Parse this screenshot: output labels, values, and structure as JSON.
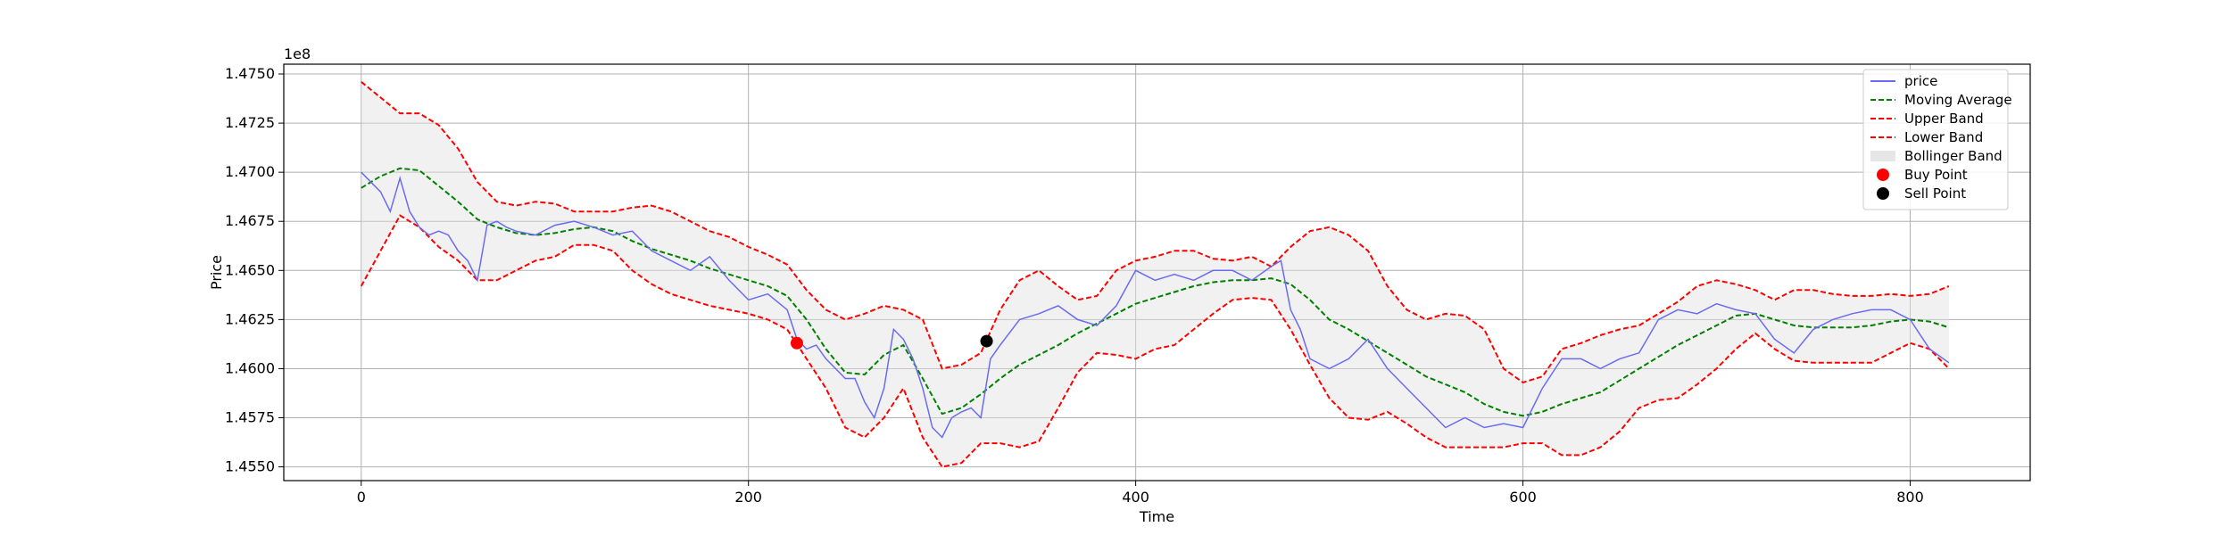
{
  "chart_data": {
    "type": "line",
    "xlabel": "Time",
    "ylabel": "Price",
    "y_offset_label": "1e8",
    "xlim": [
      -40,
      862
    ],
    "ylim": [
      145430000.0,
      147550000.0
    ],
    "x_ticks": [
      0,
      200,
      400,
      600,
      800
    ],
    "x_tick_labels": [
      "0",
      "200",
      "400",
      "600",
      "800"
    ],
    "y_ticks": [
      145500000.0,
      145750000.0,
      146000000.0,
      146250000.0,
      146500000.0,
      146750000.0,
      147000000.0,
      147250000.0,
      147500000.0
    ],
    "y_tick_labels": [
      "1.4550",
      "1.4575",
      "1.4600",
      "1.4625",
      "1.4650",
      "1.4675",
      "1.4700",
      "1.4725",
      "1.4750"
    ],
    "grid": true,
    "legend_position": "top-right",
    "colors": {
      "price": "#6b6bf0",
      "moving_average": "#008000",
      "bands": "#ff0000",
      "band_fill": "#e0e0e0",
      "buy": "#ff0000",
      "sell": "#000000"
    },
    "series": [
      {
        "name": "price",
        "x": [
          0,
          5,
          10,
          15,
          20,
          25,
          30,
          35,
          40,
          45,
          50,
          55,
          60,
          65,
          70,
          75,
          80,
          90,
          100,
          110,
          120,
          130,
          140,
          150,
          160,
          170,
          180,
          190,
          200,
          210,
          220,
          225,
          230,
          235,
          240,
          245,
          250,
          255,
          260,
          265,
          270,
          275,
          280,
          285,
          290,
          295,
          300,
          305,
          310,
          315,
          320,
          325,
          330,
          340,
          350,
          360,
          370,
          380,
          390,
          400,
          410,
          420,
          430,
          440,
          450,
          460,
          470,
          475,
          480,
          485,
          490,
          500,
          510,
          520,
          530,
          540,
          550,
          560,
          570,
          580,
          590,
          600,
          610,
          620,
          630,
          640,
          650,
          660,
          670,
          680,
          690,
          700,
          710,
          720,
          730,
          740,
          750,
          760,
          770,
          780,
          790,
          800,
          810,
          820
        ],
        "y": [
          147000000.0,
          146950000.0,
          146900000.0,
          146800000.0,
          146970000.0,
          146800000.0,
          146720000.0,
          146680000.0,
          146700000.0,
          146680000.0,
          146600000.0,
          146550000.0,
          146450000.0,
          146730000.0,
          146750000.0,
          146720000.0,
          146700000.0,
          146680000.0,
          146730000.0,
          146750000.0,
          146720000.0,
          146680000.0,
          146700000.0,
          146600000.0,
          146550000.0,
          146500000.0,
          146570000.0,
          146450000.0,
          146350000.0,
          146380000.0,
          146300000.0,
          146150000.0,
          146100000.0,
          146120000.0,
          146050000.0,
          146000000.0,
          145950000.0,
          145950000.0,
          145830000.0,
          145750000.0,
          145900000.0,
          146200000.0,
          146150000.0,
          146050000.0,
          145900000.0,
          145700000.0,
          145650000.0,
          145750000.0,
          145780000.0,
          145800000.0,
          145750000.0,
          146050000.0,
          146120000.0,
          146250000.0,
          146280000.0,
          146320000.0,
          146250000.0,
          146220000.0,
          146320000.0,
          146500000.0,
          146450000.0,
          146480000.0,
          146450000.0,
          146500000.0,
          146500000.0,
          146450000.0,
          146520000.0,
          146550000.0,
          146300000.0,
          146200000.0,
          146050000.0,
          146000000.0,
          146050000.0,
          146150000.0,
          146000000.0,
          145900000.0,
          145800000.0,
          145700000.0,
          145750000.0,
          145700000.0,
          145720000.0,
          145700000.0,
          145900000.0,
          146050000.0,
          146050000.0,
          146000000.0,
          146050000.0,
          146080000.0,
          146250000.0,
          146300000.0,
          146280000.0,
          146330000.0,
          146300000.0,
          146280000.0,
          146150000.0,
          146080000.0,
          146200000.0,
          146250000.0,
          146280000.0,
          146300000.0,
          146300000.0,
          146250000.0,
          146100000.0,
          146030000.0
        ]
      },
      {
        "name": "Moving Average",
        "x": [
          0,
          10,
          20,
          30,
          40,
          50,
          60,
          70,
          80,
          90,
          100,
          110,
          120,
          130,
          140,
          150,
          160,
          170,
          180,
          190,
          200,
          210,
          220,
          230,
          240,
          250,
          260,
          270,
          280,
          290,
          300,
          310,
          320,
          330,
          340,
          350,
          360,
          370,
          380,
          390,
          400,
          410,
          420,
          430,
          440,
          450,
          460,
          470,
          480,
          490,
          500,
          510,
          520,
          530,
          540,
          550,
          560,
          570,
          580,
          590,
          600,
          610,
          620,
          630,
          640,
          650,
          660,
          670,
          680,
          690,
          700,
          710,
          720,
          730,
          740,
          750,
          760,
          770,
          780,
          790,
          800,
          810,
          820
        ],
        "y": [
          146920000.0,
          146980000.0,
          147020000.0,
          147010000.0,
          146930000.0,
          146850000.0,
          146760000.0,
          146720000.0,
          146690000.0,
          146680000.0,
          146690000.0,
          146710000.0,
          146720000.0,
          146700000.0,
          146650000.0,
          146610000.0,
          146580000.0,
          146550000.0,
          146510000.0,
          146480000.0,
          146450000.0,
          146420000.0,
          146370000.0,
          146250000.0,
          146100000.0,
          145980000.0,
          145970000.0,
          146070000.0,
          146120000.0,
          145950000.0,
          145770000.0,
          145800000.0,
          145870000.0,
          145950000.0,
          146020000.0,
          146070000.0,
          146120000.0,
          146180000.0,
          146230000.0,
          146280000.0,
          146330000.0,
          146360000.0,
          146390000.0,
          146420000.0,
          146440000.0,
          146450000.0,
          146450000.0,
          146460000.0,
          146430000.0,
          146350000.0,
          146250000.0,
          146200000.0,
          146140000.0,
          146080000.0,
          146020000.0,
          145960000.0,
          145920000.0,
          145880000.0,
          145820000.0,
          145780000.0,
          145760000.0,
          145780000.0,
          145820000.0,
          145850000.0,
          145880000.0,
          145940000.0,
          146000000.0,
          146060000.0,
          146120000.0,
          146170000.0,
          146220000.0,
          146270000.0,
          146280000.0,
          146250000.0,
          146220000.0,
          146210000.0,
          146210000.0,
          146210000.0,
          146220000.0,
          146240000.0,
          146250000.0,
          146240000.0,
          146210000.0
        ]
      },
      {
        "name": "Upper Band",
        "x": [
          0,
          10,
          20,
          30,
          40,
          50,
          60,
          70,
          80,
          90,
          100,
          110,
          120,
          130,
          140,
          150,
          160,
          170,
          180,
          190,
          200,
          210,
          220,
          230,
          240,
          250,
          260,
          270,
          280,
          290,
          300,
          310,
          320,
          330,
          340,
          350,
          360,
          370,
          380,
          390,
          400,
          410,
          420,
          430,
          440,
          450,
          460,
          470,
          480,
          490,
          500,
          510,
          520,
          530,
          540,
          550,
          560,
          570,
          580,
          590,
          600,
          610,
          620,
          630,
          640,
          650,
          660,
          670,
          680,
          690,
          700,
          710,
          720,
          730,
          740,
          750,
          760,
          770,
          780,
          790,
          800,
          810,
          820
        ],
        "y": [
          147460000.0,
          147380000.0,
          147300000.0,
          147300000.0,
          147240000.0,
          147120000.0,
          146950000.0,
          146850000.0,
          146830000.0,
          146850000.0,
          146840000.0,
          146800000.0,
          146800000.0,
          146800000.0,
          146820000.0,
          146830000.0,
          146800000.0,
          146750000.0,
          146700000.0,
          146670000.0,
          146620000.0,
          146580000.0,
          146530000.0,
          146400000.0,
          146300000.0,
          146250000.0,
          146280000.0,
          146320000.0,
          146300000.0,
          146250000.0,
          146000000.0,
          146020000.0,
          146080000.0,
          146300000.0,
          146450000.0,
          146500000.0,
          146420000.0,
          146350000.0,
          146370000.0,
          146500000.0,
          146550000.0,
          146570000.0,
          146600000.0,
          146600000.0,
          146560000.0,
          146550000.0,
          146570000.0,
          146520000.0,
          146620000.0,
          146700000.0,
          146720000.0,
          146680000.0,
          146600000.0,
          146420000.0,
          146300000.0,
          146250000.0,
          146280000.0,
          146270000.0,
          146200000.0,
          146000000.0,
          145930000.0,
          145960000.0,
          146100000.0,
          146130000.0,
          146170000.0,
          146200000.0,
          146220000.0,
          146280000.0,
          146340000.0,
          146420000.0,
          146450000.0,
          146430000.0,
          146400000.0,
          146350000.0,
          146400000.0,
          146400000.0,
          146380000.0,
          146370000.0,
          146370000.0,
          146380000.0,
          146370000.0,
          146380000.0,
          146420000.0
        ]
      },
      {
        "name": "Lower Band",
        "x": [
          0,
          10,
          20,
          30,
          40,
          50,
          60,
          70,
          80,
          90,
          100,
          110,
          120,
          130,
          140,
          150,
          160,
          170,
          180,
          190,
          200,
          210,
          220,
          230,
          240,
          250,
          260,
          270,
          280,
          290,
          300,
          310,
          320,
          330,
          340,
          350,
          360,
          370,
          380,
          390,
          400,
          410,
          420,
          430,
          440,
          450,
          460,
          470,
          480,
          490,
          500,
          510,
          520,
          530,
          540,
          550,
          560,
          570,
          580,
          590,
          600,
          610,
          620,
          630,
          640,
          650,
          660,
          670,
          680,
          690,
          700,
          710,
          720,
          730,
          740,
          750,
          760,
          770,
          780,
          790,
          800,
          810,
          820
        ],
        "y": [
          146420000.0,
          146600000.0,
          146780000.0,
          146720000.0,
          146620000.0,
          146550000.0,
          146450000.0,
          146450000.0,
          146500000.0,
          146550000.0,
          146570000.0,
          146630000.0,
          146630000.0,
          146600000.0,
          146500000.0,
          146430000.0,
          146380000.0,
          146350000.0,
          146320000.0,
          146300000.0,
          146280000.0,
          146250000.0,
          146200000.0,
          146050000.0,
          145900000.0,
          145700000.0,
          145650000.0,
          145750000.0,
          145900000.0,
          145650000.0,
          145500000.0,
          145520000.0,
          145620000.0,
          145620000.0,
          145600000.0,
          145630000.0,
          145800000.0,
          145980000.0,
          146080000.0,
          146070000.0,
          146050000.0,
          146100000.0,
          146120000.0,
          146200000.0,
          146280000.0,
          146350000.0,
          146360000.0,
          146350000.0,
          146200000.0,
          146020000.0,
          145850000.0,
          145750000.0,
          145740000.0,
          145780000.0,
          145720000.0,
          145650000.0,
          145600000.0,
          145600000.0,
          145600000.0,
          145600000.0,
          145620000.0,
          145620000.0,
          145560000.0,
          145560000.0,
          145600000.0,
          145680000.0,
          145800000.0,
          145840000.0,
          145850000.0,
          145920000.0,
          146000000.0,
          146100000.0,
          146180000.0,
          146100000.0,
          146040000.0,
          146030000.0,
          146030000.0,
          146030000.0,
          146030000.0,
          146080000.0,
          146130000.0,
          146100000.0,
          146000000.0
        ]
      }
    ],
    "band_label": "Bollinger Band",
    "markers": [
      {
        "name": "Buy Point",
        "x": 225,
        "y": 146130000.0
      },
      {
        "name": "Sell Point",
        "x": 323,
        "y": 146140000.0
      }
    ],
    "legend": [
      {
        "label": "price",
        "kind": "line",
        "color": "#6b6bf0",
        "dash": ""
      },
      {
        "label": "Moving Average",
        "kind": "line",
        "color": "#008000",
        "dash": "6,3"
      },
      {
        "label": "Upper Band",
        "kind": "line",
        "color": "#ff0000",
        "dash": "6,3"
      },
      {
        "label": "Lower Band",
        "kind": "line",
        "color": "#ff0000",
        "dash": "6,3"
      },
      {
        "label": "Bollinger Band",
        "kind": "patch",
        "color": "#e6e6e6",
        "dash": ""
      },
      {
        "label": "Buy Point",
        "kind": "dot",
        "color": "#ff0000",
        "dash": ""
      },
      {
        "label": "Sell Point",
        "kind": "dot",
        "color": "#000000",
        "dash": ""
      }
    ]
  }
}
